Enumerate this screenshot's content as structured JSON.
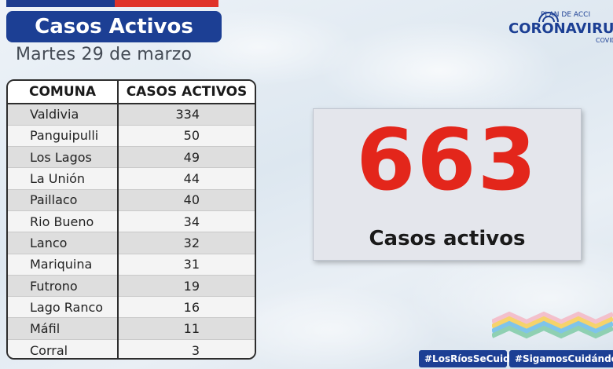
{
  "header": {
    "title": "Casos Activos",
    "date": "Martes 29 de marzo"
  },
  "logo": {
    "plan_text": "PLAN DE ACCI",
    "name": "CORONAVIRU",
    "suffix": "COVID"
  },
  "table": {
    "headers": [
      "COMUNA",
      "CASOS ACTIVOS"
    ],
    "rows": [
      {
        "comuna": "Valdivia",
        "casos": "334"
      },
      {
        "comuna": "Panguipulli",
        "casos": "50"
      },
      {
        "comuna": "Los Lagos",
        "casos": "49"
      },
      {
        "comuna": "La Unión",
        "casos": "44"
      },
      {
        "comuna": "Paillaco",
        "casos": "40"
      },
      {
        "comuna": "Rio Bueno",
        "casos": "34"
      },
      {
        "comuna": "Lanco",
        "casos": "32"
      },
      {
        "comuna": "Mariquina",
        "casos": "31"
      },
      {
        "comuna": "Futrono",
        "casos": "19"
      },
      {
        "comuna": "Lago Ranco",
        "casos": "16"
      },
      {
        "comuna": "Máfil",
        "casos": "11"
      },
      {
        "comuna": "Corral",
        "casos": "3"
      }
    ]
  },
  "total": {
    "value": "663",
    "label": "Casos activos"
  },
  "hashtags": [
    "#LosRíosSeCuida",
    "#SigamosCuidándon"
  ],
  "colors": {
    "brand_blue": "#1c3f94",
    "accent_red": "#e3261b",
    "flag_red": "#e0332a"
  }
}
